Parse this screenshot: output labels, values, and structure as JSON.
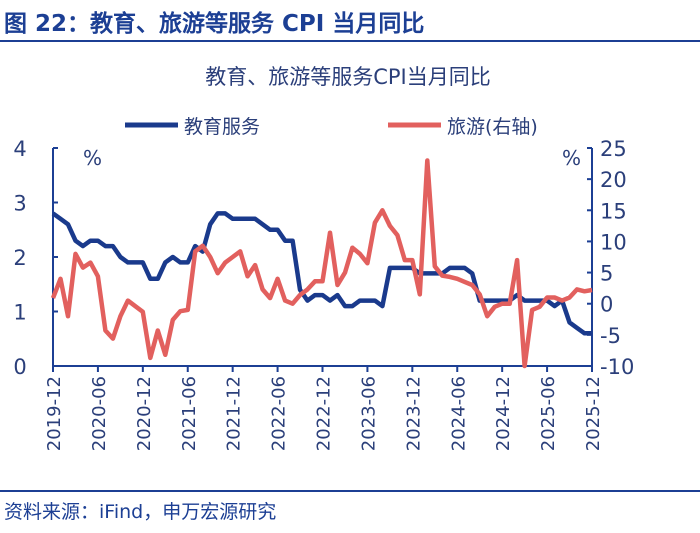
{
  "figure_title": "图 22：教育、旅游等服务 CPI 当月同比",
  "source": "资料来源：iFind，申万宏源研究",
  "colors": {
    "education": "#1a3a8c",
    "tourism": "#e2605e",
    "axis": "#1c3f94",
    "text": "#2b3f7a"
  },
  "chart_data": {
    "type": "line",
    "title": "教育、旅游等服务CPI当月同比",
    "left_unit": "%",
    "right_unit": "%",
    "ylim_left": [
      0,
      4
    ],
    "yticks_left": [
      "0",
      "1",
      "2",
      "3",
      "4"
    ],
    "ylim_right": [
      -10,
      25
    ],
    "yticks_right": [
      "-10",
      "-5",
      "0",
      "5",
      "10",
      "15",
      "20",
      "25"
    ],
    "x_tick_labels": [
      "2019-12",
      "2020-06",
      "2020-12",
      "2021-06",
      "2021-12",
      "2022-06",
      "2022-12",
      "2023-06",
      "2023-12",
      "2024-06",
      "2024-12",
      "2025-06",
      "2025-12"
    ],
    "x_start": "2019-12",
    "x_end": "2025-12",
    "grid": false,
    "legend_placement": "top",
    "series": [
      {
        "name": "教育服务",
        "axis": "left",
        "values": [
          2.8,
          2.7,
          2.6,
          2.3,
          2.2,
          2.3,
          2.3,
          2.2,
          2.2,
          2.0,
          1.9,
          1.9,
          1.9,
          1.6,
          1.6,
          1.9,
          2.0,
          1.9,
          1.9,
          2.2,
          2.1,
          2.6,
          2.8,
          2.8,
          2.7,
          2.7,
          2.7,
          2.7,
          2.6,
          2.5,
          2.5,
          2.3,
          2.3,
          1.4,
          1.2,
          1.3,
          1.3,
          1.2,
          1.3,
          1.1,
          1.1,
          1.2,
          1.2,
          1.2,
          1.1,
          1.8,
          1.8,
          1.8,
          1.8,
          1.7,
          1.7,
          1.7,
          1.7,
          1.8,
          1.8,
          1.8,
          1.7,
          1.2,
          1.2,
          1.2,
          1.2,
          1.2,
          1.3,
          1.2,
          1.2,
          1.2,
          1.2,
          1.1,
          1.2,
          0.8,
          0.7,
          0.6,
          0.6
        ]
      },
      {
        "name": "旅游(右轴)",
        "axis": "right",
        "values": [
          0.9,
          4,
          -2,
          8,
          5.8,
          6.6,
          4.4,
          -4.3,
          -5.6,
          -2,
          0.5,
          -0.4,
          -1.3,
          -8.7,
          -4.3,
          -8.2,
          -2.6,
          -1.2,
          -1,
          8.4,
          9.3,
          7.5,
          4.9,
          6.6,
          7.5,
          8.4,
          4.4,
          6.2,
          2.3,
          0.9,
          4,
          0.5,
          0,
          1.4,
          2.3,
          3.6,
          3.6,
          11.4,
          3,
          5,
          9,
          8,
          6.5,
          13,
          15,
          12.5,
          11,
          7,
          7,
          1.5,
          23,
          6,
          4.5,
          4.3,
          4,
          3.5,
          3,
          1.5,
          -2,
          -0.5,
          0,
          0,
          7,
          -10,
          -1,
          -0.5,
          1,
          1,
          0.5,
          1,
          2.3,
          2,
          2.2
        ]
      }
    ]
  }
}
